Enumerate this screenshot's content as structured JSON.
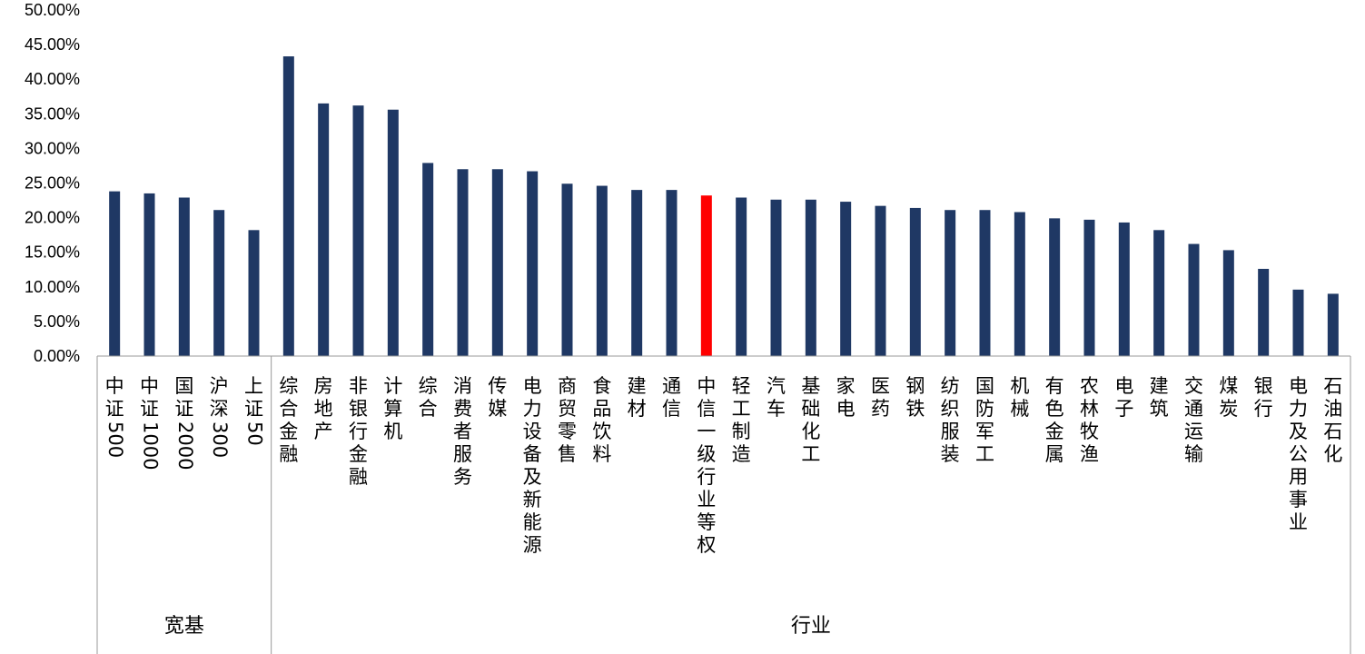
{
  "chart_data": {
    "type": "bar",
    "yticks": [
      "50.00%",
      "45.00%",
      "40.00%",
      "35.00%",
      "30.00%",
      "25.00%",
      "20.00%",
      "15.00%",
      "10.00%",
      "5.00%",
      "0.00%"
    ],
    "ylim": [
      0,
      50
    ],
    "grid": false,
    "categories": [
      "中证500",
      "中证1000",
      "国证2000",
      "沪深300",
      "上证50",
      "综合金融",
      "房地产",
      "非银行金融",
      "计算机",
      "综合",
      "消费者服务",
      "传媒",
      "电力设备及新能源",
      "商贸零售",
      "食品饮料",
      "建材",
      "通信",
      "中信一级行业等权",
      "轻工制造",
      "汽车",
      "基础化工",
      "家电",
      "医药",
      "钢铁",
      "纺织服装",
      "国防军工",
      "机械",
      "有色金属",
      "农林牧渔",
      "电子",
      "建筑",
      "交通运输",
      "煤炭",
      "银行",
      "电力及公用事业",
      "石油石化"
    ],
    "values": [
      23.8,
      23.5,
      22.9,
      21.1,
      18.2,
      43.3,
      36.5,
      36.2,
      35.6,
      27.9,
      27.0,
      27.0,
      26.7,
      24.9,
      24.6,
      24.0,
      24.0,
      23.2,
      22.9,
      22.6,
      22.6,
      22.3,
      21.7,
      21.4,
      21.1,
      21.1,
      20.8,
      19.9,
      19.7,
      19.3,
      18.2,
      16.2,
      15.3,
      12.6,
      9.6,
      9.0
    ],
    "highlight_index": 17,
    "groups": [
      {
        "label": "宽基",
        "start": 0,
        "end": 4
      },
      {
        "label": "行业",
        "start": 5,
        "end": 35
      }
    ],
    "colors": {
      "bar": "#1F3864",
      "highlight": "#FF0000",
      "axis": "#9A9A9A"
    }
  }
}
